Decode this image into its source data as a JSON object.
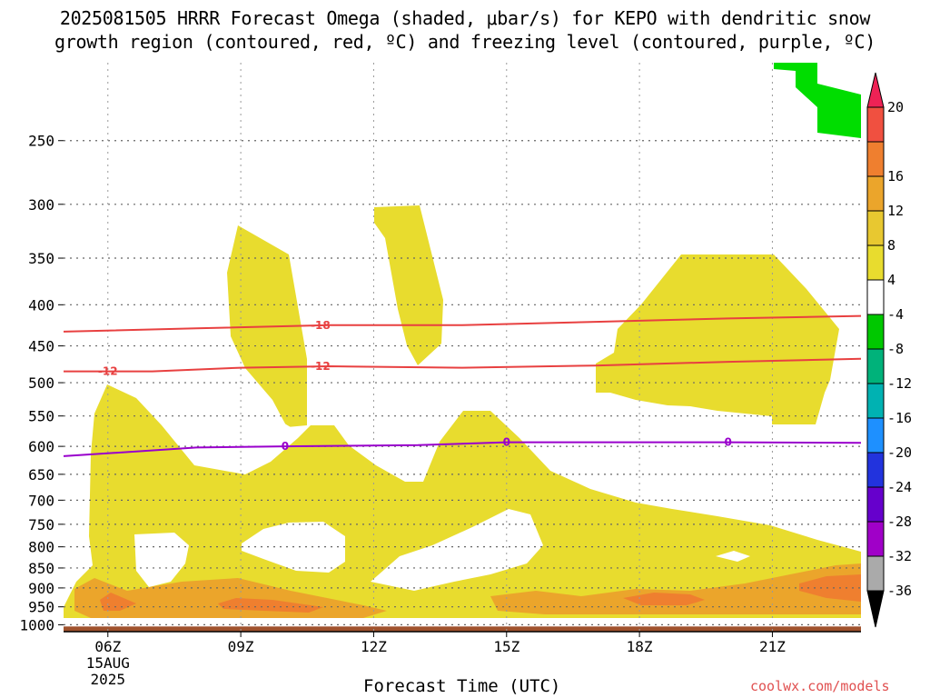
{
  "title": {
    "line1": "2025081505 HRRR Forecast Omega (shaded, μbar/s) for KEPO with dendritic snow",
    "line2": "growth region (contoured, red, ºC) and freezing level (contoured, purple, ºC)"
  },
  "footer": {
    "xlabel": "Forecast Time (UTC)",
    "credit": "coolwx.com/models"
  },
  "chart_data": {
    "type": "heatmap",
    "title": "2025081505 HRRR Forecast Omega (shaded, μbar/s) for KEPO with dendritic snow growth region (contoured, red, ºC) and freezing level (contoured, purple, ºC)",
    "xlabel": "Forecast Time (UTC)",
    "ylabel": "",
    "x_ticks": [
      {
        "label": "06Z",
        "hour": 6
      },
      {
        "label": "09Z",
        "hour": 9
      },
      {
        "label": "12Z",
        "hour": 12
      },
      {
        "label": "15Z",
        "hour": 15
      },
      {
        "label": "18Z",
        "hour": 18
      },
      {
        "label": "21Z",
        "hour": 21
      }
    ],
    "x_sublabels": [
      "15AUG",
      "2025"
    ],
    "xlim_hours": [
      5,
      23
    ],
    "y_axis": "pressure (mb), log scale, inverted",
    "y_ticks": [
      250,
      300,
      350,
      400,
      450,
      500,
      550,
      600,
      650,
      700,
      750,
      800,
      850,
      900,
      950,
      1000
    ],
    "ylim": [
      200,
      1020
    ],
    "grid": true,
    "colorbar": {
      "levels": [
        "20",
        "16",
        "12",
        "8",
        "4",
        "-4",
        "-8",
        "-12",
        "-16",
        "-20",
        "-24",
        "-28",
        "-32",
        "-36"
      ],
      "colors": [
        "#ee2255",
        "#f05040",
        "#ef7f2f",
        "#eba52b",
        "#e8c830",
        "#e8dc2e",
        "#ffffff",
        "#00c800",
        "#00b27a",
        "#00b2b2",
        "#1e90ff",
        "#2233dd",
        "#6600cc",
        "#a000c8",
        "#aaaaaa",
        "#000000"
      ]
    },
    "omega_regions": [
      {
        "name": "upward 4-8",
        "color": "#e8dc2e",
        "value_range": [
          4,
          8
        ]
      },
      {
        "name": "upward 8-12",
        "color": "#eba52b",
        "value_range": [
          8,
          12
        ]
      },
      {
        "name": "upward 12-16",
        "color": "#ef7f2f",
        "value_range": [
          12,
          16
        ]
      },
      {
        "name": "downward -4 to -8",
        "color": "#00dd00",
        "value_range": [
          -8,
          -4
        ]
      }
    ],
    "contours": [
      {
        "name": "-18",
        "color": "#e84040",
        "label": "-18",
        "points": [
          [
            5,
            432
          ],
          [
            8,
            428
          ],
          [
            11,
            424
          ],
          [
            14,
            424
          ],
          [
            17,
            420
          ],
          [
            20,
            416
          ],
          [
            23,
            413
          ]
        ]
      },
      {
        "name": "-12",
        "color": "#e84040",
        "label": "-12",
        "points": [
          [
            5,
            484
          ],
          [
            7,
            484
          ],
          [
            9,
            479
          ],
          [
            11,
            477
          ],
          [
            14,
            479
          ],
          [
            17,
            476
          ],
          [
            20,
            471
          ],
          [
            23,
            467
          ]
        ]
      },
      {
        "name": "0",
        "color": "#9900cc",
        "label": "0",
        "points": [
          [
            5,
            617
          ],
          [
            8,
            602
          ],
          [
            10,
            600
          ],
          [
            13,
            598
          ],
          [
            15,
            593
          ],
          [
            18,
            593
          ],
          [
            20,
            593
          ],
          [
            23,
            594
          ]
        ]
      }
    ],
    "surface_band": {
      "color": "#a0522d",
      "from_mb": 1005,
      "to_mb": 1020
    }
  }
}
